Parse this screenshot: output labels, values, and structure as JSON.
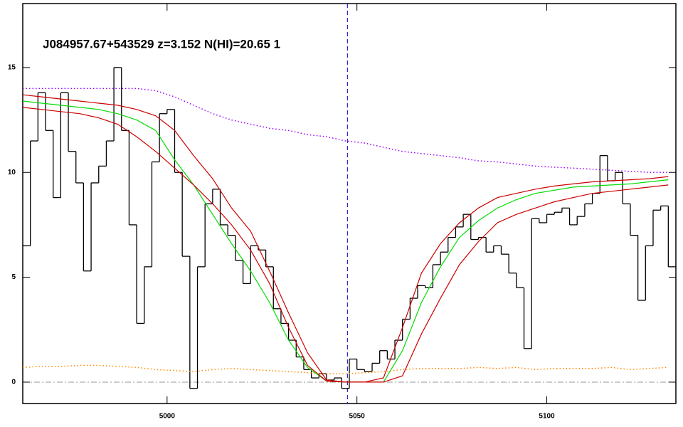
{
  "chart_data": {
    "type": "line",
    "title": "J084957.67+543529 z=3.152 N(HI)=20.65 1",
    "xlim": [
      4962,
      5134
    ],
    "ylim": [
      -1.02,
      18.05
    ],
    "xticks": [
      5000,
      5050,
      5100
    ],
    "yticks": [
      0,
      5,
      10,
      15
    ],
    "hlines": [
      0
    ],
    "vlines": [
      5047.5
    ],
    "series": [
      {
        "color": "#000000",
        "drawstyle": "steps-mid",
        "linestyle": "solid",
        "x": [
          4963,
          4965,
          4967,
          4969,
          4971,
          4973,
          4975,
          4977,
          4979,
          4981,
          4983,
          4985,
          4987,
          4989,
          4991,
          4993,
          4995,
          4997,
          4999,
          5001,
          5003,
          5005,
          5007,
          5009,
          5011,
          5013,
          5015,
          5017,
          5019,
          5021,
          5023,
          5025,
          5027,
          5029,
          5031,
          5033,
          5035,
          5037,
          5039,
          5041,
          5043,
          5045,
          5047,
          5049,
          5051,
          5053,
          5055,
          5057,
          5059,
          5061,
          5063,
          5065,
          5067,
          5069,
          5071,
          5073,
          5075,
          5077,
          5079,
          5081,
          5083,
          5085,
          5087,
          5089,
          5091,
          5093,
          5095,
          5097,
          5099,
          5101,
          5103,
          5105,
          5107,
          5109,
          5111,
          5113,
          5115,
          5117,
          5119,
          5121,
          5123,
          5125,
          5127,
          5129,
          5131,
          5133
        ],
        "values": [
          6.5,
          11.5,
          13.8,
          12,
          8.8,
          13.8,
          11,
          9.5,
          5.3,
          9.5,
          10.3,
          11.5,
          15,
          12,
          7.5,
          2.8,
          5.5,
          10.5,
          12.8,
          13,
          10,
          6,
          -0.3,
          5.5,
          8.5,
          9.2,
          7.5,
          7,
          5.8,
          4.7,
          6.5,
          6.3,
          5.5,
          3.5,
          2.8,
          2,
          1.2,
          0.6,
          0.2,
          0.4,
          0.1,
          0.2,
          -0.3,
          1.1,
          0.6,
          0.5,
          0.9,
          1.5,
          1.1,
          2,
          3,
          4,
          4.6,
          4.5,
          5.6,
          6.2,
          6.9,
          7.4,
          8,
          6.8,
          6.9,
          6.2,
          6.5,
          6.1,
          5.2,
          4.5,
          1.6,
          7.8,
          7.6,
          8,
          8.1,
          8.3,
          7.5,
          7.9,
          8.5,
          9,
          10.8,
          9.6,
          10,
          8.5,
          7,
          3.9,
          6.5,
          8.2,
          8.4,
          5.5
        ]
      },
      {
        "color": "#00dd00",
        "drawstyle": "default",
        "linestyle": "solid",
        "x": [
          4962,
          4967,
          4972,
          4977,
          4982,
          4987,
          4992,
          4997,
          5002,
          5007,
          5012,
          5017,
          5022,
          5027,
          5032,
          5037,
          5042,
          5047,
          5052,
          5057,
          5062,
          5067,
          5072,
          5077,
          5082,
          5087,
          5092,
          5097,
          5102,
          5107,
          5112,
          5117,
          5122,
          5127,
          5132
        ],
        "values": [
          13.4,
          13.3,
          13.2,
          13.1,
          13,
          12.8,
          12.5,
          12,
          10.6,
          9.4,
          8,
          6.6,
          5.3,
          3.8,
          2,
          0.7,
          0.05,
          0,
          0,
          0,
          1.5,
          3.8,
          5.5,
          6.9,
          7.7,
          8.3,
          8.7,
          9,
          9.15,
          9.3,
          9.35,
          9.4,
          9.45,
          9.55,
          9.65
        ]
      },
      {
        "color": "#cc0000",
        "drawstyle": "default",
        "linestyle": "solid",
        "x": [
          4962,
          4967,
          4972,
          4977,
          4982,
          4987,
          4992,
          4997,
          5002,
          5007,
          5012,
          5017,
          5022,
          5027,
          5032,
          5037,
          5042,
          5047,
          5052,
          5057,
          5062,
          5067,
          5072,
          5077,
          5082,
          5087,
          5092,
          5097,
          5102,
          5107,
          5112,
          5117,
          5122,
          5127,
          5132
        ],
        "values": [
          13.7,
          13.6,
          13.5,
          13.4,
          13.3,
          13.2,
          13,
          12.7,
          12,
          10.8,
          9.7,
          8.3,
          7.2,
          5.3,
          3.3,
          1.4,
          0.1,
          0,
          0,
          0.2,
          2.6,
          5.2,
          6.6,
          7.6,
          8.3,
          8.8,
          9,
          9.2,
          9.35,
          9.45,
          9.55,
          9.6,
          9.65,
          9.7,
          9.8
        ]
      },
      {
        "color": "#cc0000",
        "drawstyle": "default",
        "linestyle": "solid",
        "x": [
          4962,
          4967,
          4972,
          4977,
          4982,
          4987,
          4992,
          4997,
          5002,
          5007,
          5012,
          5017,
          5022,
          5027,
          5032,
          5037,
          5042,
          5047,
          5052,
          5057,
          5062,
          5067,
          5072,
          5077,
          5082,
          5087,
          5092,
          5097,
          5102,
          5107,
          5112,
          5117,
          5122,
          5127,
          5132
        ],
        "values": [
          13.1,
          13,
          12.9,
          12.8,
          12.6,
          12.3,
          11.7,
          11,
          10.2,
          9.4,
          8.5,
          7.5,
          6.3,
          4.7,
          2.6,
          0.8,
          0.05,
          0,
          0,
          0,
          0.3,
          2.3,
          4,
          5.6,
          6.7,
          7.6,
          8,
          8.3,
          8.6,
          8.8,
          9,
          9.1,
          9.2,
          9.3,
          9.4
        ]
      },
      {
        "color": "#9900ff",
        "drawstyle": "default",
        "linestyle": "dotted",
        "x": [
          4962,
          4967,
          4972,
          4977,
          4982,
          4987,
          4992,
          4997,
          5002,
          5007,
          5012,
          5017,
          5022,
          5027,
          5032,
          5037,
          5042,
          5047,
          5052,
          5057,
          5062,
          5067,
          5072,
          5077,
          5082,
          5087,
          5092,
          5097,
          5102,
          5107,
          5112,
          5117,
          5122,
          5127,
          5132
        ],
        "values": [
          14,
          14,
          14,
          14,
          14,
          14,
          14,
          13.9,
          13.6,
          13.2,
          12.8,
          12.5,
          12.3,
          12.1,
          12,
          11.8,
          11.7,
          11.5,
          11.4,
          11.2,
          11,
          10.9,
          10.8,
          10.7,
          10.55,
          10.5,
          10.4,
          10.3,
          10.25,
          10.2,
          10.15,
          10.1,
          10.05,
          10,
          10
        ]
      },
      {
        "color": "#ff8800",
        "drawstyle": "default",
        "linestyle": "dotted",
        "x": [
          4962,
          4967,
          4972,
          4977,
          4982,
          4987,
          4992,
          4997,
          5002,
          5007,
          5012,
          5017,
          5022,
          5027,
          5032,
          5037,
          5042,
          5047,
          5052,
          5057,
          5062,
          5067,
          5072,
          5077,
          5082,
          5087,
          5092,
          5097,
          5102,
          5107,
          5112,
          5117,
          5122,
          5127,
          5132
        ],
        "values": [
          0.7,
          0.75,
          0.75,
          0.8,
          0.8,
          0.75,
          0.7,
          0.6,
          0.55,
          0.5,
          0.6,
          0.65,
          0.6,
          0.55,
          0.5,
          0.45,
          0.4,
          0.4,
          0.45,
          0.5,
          0.6,
          0.65,
          0.65,
          0.65,
          0.7,
          0.65,
          0.7,
          0.6,
          0.65,
          0.65,
          0.65,
          0.7,
          0.6,
          0.65,
          0.7
        ]
      }
    ]
  }
}
